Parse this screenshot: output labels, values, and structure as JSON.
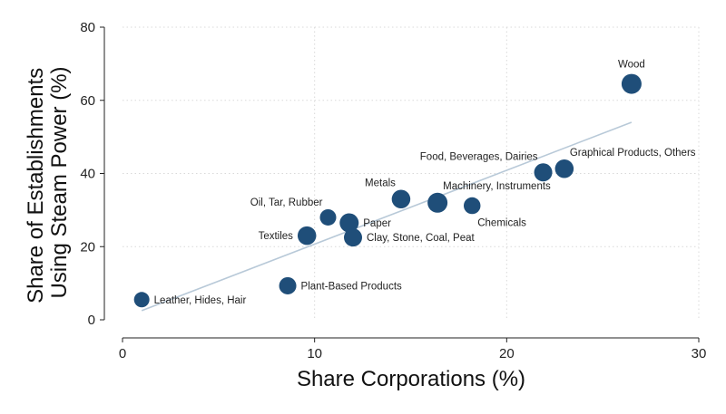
{
  "chart_data": {
    "type": "scatter",
    "title": "",
    "xlabel": "Share Corporations (%)",
    "ylabel_lines": [
      "Share of Establishments",
      "Using Steam Power (%)"
    ],
    "xlim": [
      0,
      30
    ],
    "ylim": [
      0,
      80
    ],
    "xticks": [
      0,
      10,
      20,
      30
    ],
    "yticks": [
      0,
      20,
      40,
      60,
      80
    ],
    "grid": true,
    "legend": "none",
    "marker_color": "#1f4e79",
    "fit_line_color": "#b8c9d8",
    "fit_line": {
      "x": [
        1.0,
        26.5
      ],
      "y": [
        2.5,
        54.0
      ]
    },
    "points": [
      {
        "label": "Wood",
        "x": 26.5,
        "y": 64.5,
        "weight": 1.0,
        "label_pos": "above"
      },
      {
        "label": "Graphical Products, Others",
        "x": 23.0,
        "y": 41.3,
        "weight": 0.85,
        "label_pos": "upper-right"
      },
      {
        "label": "Food, Beverages, Dairies",
        "x": 21.9,
        "y": 40.3,
        "weight": 0.8,
        "label_pos": "upper-left"
      },
      {
        "label": "Metals",
        "x": 14.5,
        "y": 33.0,
        "weight": 0.85,
        "label_pos": "upper-left"
      },
      {
        "label": "Machinery, Instruments",
        "x": 16.4,
        "y": 32.0,
        "weight": 1.0,
        "label_pos": "upper-right"
      },
      {
        "label": "Chemicals",
        "x": 18.2,
        "y": 31.2,
        "weight": 0.65,
        "label_pos": "lower-right"
      },
      {
        "label": "Oil, Tar, Rubber",
        "x": 10.7,
        "y": 28.0,
        "weight": 0.6,
        "label_pos": "upper-left"
      },
      {
        "label": "Paper",
        "x": 11.8,
        "y": 26.5,
        "weight": 0.9,
        "label_pos": "right"
      },
      {
        "label": "Clay, Stone, Coal, Peat",
        "x": 12.0,
        "y": 22.5,
        "weight": 0.8,
        "label_pos": "right"
      },
      {
        "label": "Textiles",
        "x": 9.6,
        "y": 23.0,
        "weight": 0.85,
        "label_pos": "left"
      },
      {
        "label": "Plant-Based Products",
        "x": 8.6,
        "y": 9.3,
        "weight": 0.7,
        "label_pos": "right"
      },
      {
        "label": "Leather, Hides, Hair",
        "x": 1.0,
        "y": 5.5,
        "weight": 0.5,
        "label_pos": "right"
      }
    ]
  }
}
